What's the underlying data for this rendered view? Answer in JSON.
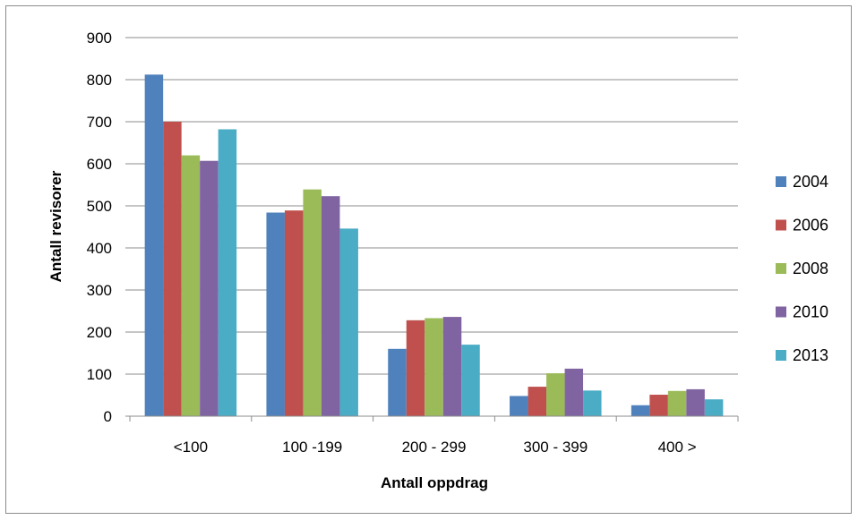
{
  "chart_data": {
    "type": "bar",
    "categories": [
      "<100",
      "100 -199",
      "200 - 299",
      "300 - 399",
      "400 >"
    ],
    "series": [
      {
        "name": "2004",
        "color": "#4F81BD",
        "values": [
          812,
          484,
          160,
          48,
          26
        ]
      },
      {
        "name": "2006",
        "color": "#C0504D",
        "values": [
          700,
          489,
          228,
          70,
          51
        ]
      },
      {
        "name": "2008",
        "color": "#9BBB59",
        "values": [
          620,
          539,
          233,
          102,
          60
        ]
      },
      {
        "name": "2010",
        "color": "#8064A2",
        "values": [
          607,
          523,
          236,
          113,
          64
        ]
      },
      {
        "name": "2013",
        "color": "#4BACC6",
        "values": [
          682,
          446,
          170,
          61,
          40
        ]
      }
    ],
    "title": "",
    "xlabel": "Antall oppdrag",
    "ylabel": "Antall revisorer",
    "ylim": [
      0,
      900
    ],
    "yticks": [
      0,
      100,
      200,
      300,
      400,
      500,
      600,
      700,
      800,
      900
    ],
    "grid": true,
    "legend_position": "right"
  }
}
